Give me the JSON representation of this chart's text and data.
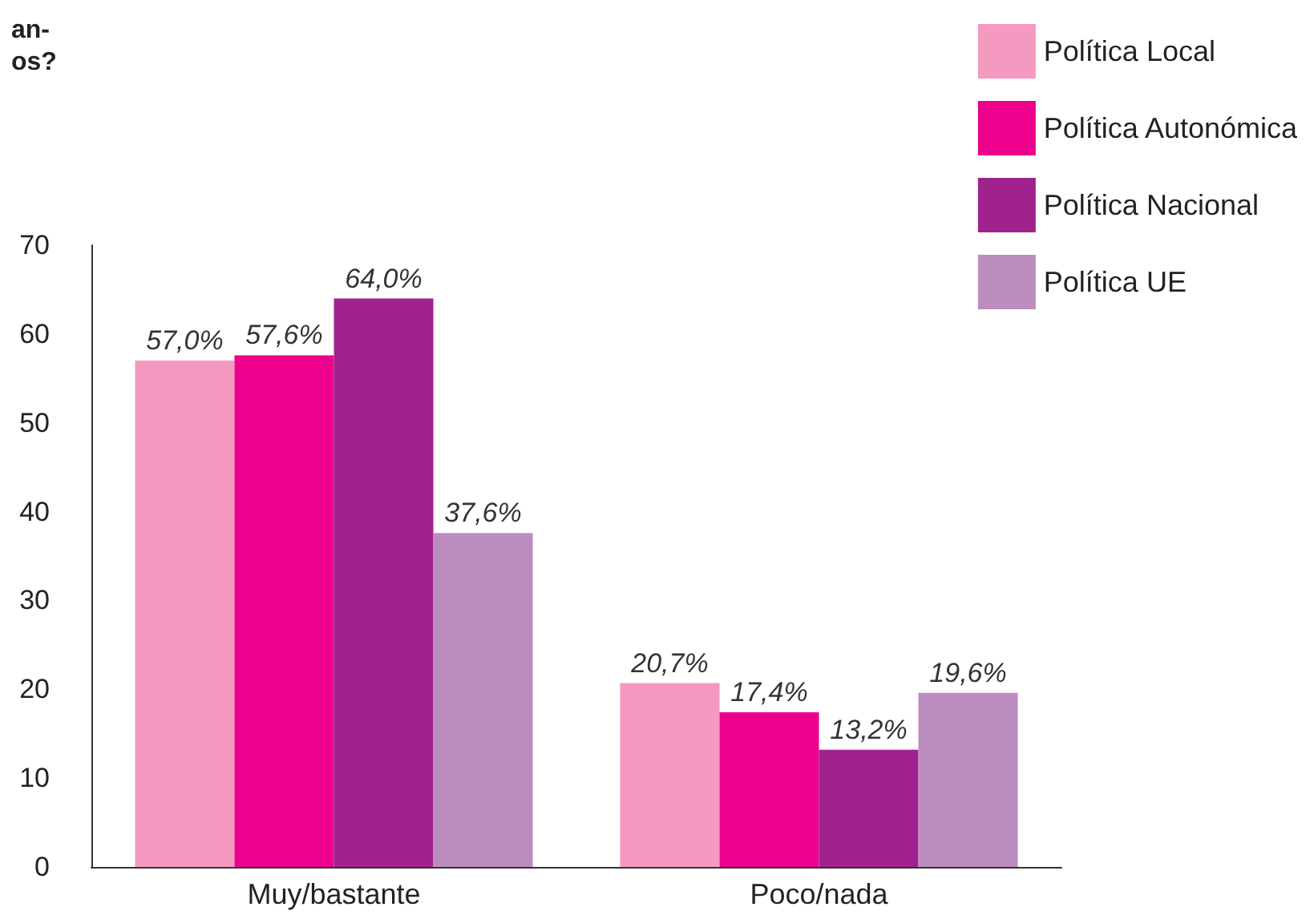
{
  "chart_data": {
    "type": "bar",
    "title": "an-\nos?",
    "categories": [
      "Muy/bastante",
      "Poco/nada"
    ],
    "series": [
      {
        "name": "Política Local",
        "color": "#f49ac1",
        "values": [
          57.0,
          20.7
        ],
        "value_labels": [
          "57,0%",
          "20,7%"
        ]
      },
      {
        "name": "Política Autonómica",
        "color": "#ec008c",
        "values": [
          57.6,
          17.4
        ],
        "value_labels": [
          "57,6%",
          "17,4%"
        ]
      },
      {
        "name": "Política Nacional",
        "color": "#a0228c",
        "values": [
          64.0,
          13.2
        ],
        "value_labels": [
          "64,0%",
          "13,2%"
        ]
      },
      {
        "name": "Política UE",
        "color": "#bd8cbf",
        "values": [
          37.6,
          19.6
        ],
        "value_labels": [
          "37,6%",
          "19,6%"
        ]
      }
    ],
    "ylim": [
      0,
      70
    ],
    "yticks": [
      0,
      10,
      20,
      30,
      40,
      50,
      60,
      70
    ],
    "grid": false,
    "legend": "top right"
  }
}
